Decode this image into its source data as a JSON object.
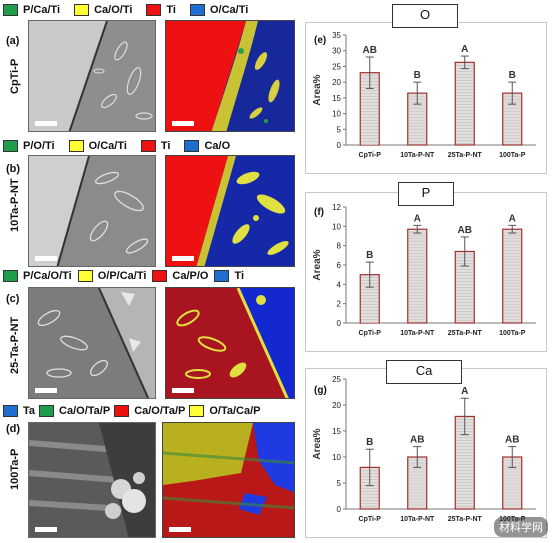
{
  "figure": {
    "rows": [
      {
        "letter": "(a)",
        "sample": "CpTi-P",
        "legend": [
          {
            "label": "P/Ca/Ti",
            "color": "#1e9e4a"
          },
          {
            "label": "Ca/O/Ti",
            "color": "#ffff33"
          },
          {
            "label": "Ti",
            "color": "#ee1111"
          },
          {
            "label": "O/Ca/Ti",
            "color": "#1f6fd0"
          }
        ]
      },
      {
        "letter": "(b)",
        "sample": "10Ta-P-NT",
        "legend": [
          {
            "label": "P/O/Ti",
            "color": "#1e9e4a"
          },
          {
            "label": "O/Ca/Ti",
            "color": "#ffff33"
          },
          {
            "label": "Ti",
            "color": "#ee1111"
          },
          {
            "label": "Ca/O",
            "color": "#1f6fd0"
          }
        ]
      },
      {
        "letter": "(c)",
        "sample": "25-Ta-P-NT",
        "legend": [
          {
            "label": "P/Ca/O/Ti",
            "color": "#1e9e4a"
          },
          {
            "label": "O/P/Ca/Ti",
            "color": "#ffff33"
          },
          {
            "label": "Ca/P/O",
            "color": "#ee1111"
          },
          {
            "label": "Ti",
            "color": "#1f6fd0"
          }
        ]
      },
      {
        "letter": "(d)",
        "sample": "100Ta-P",
        "legend": [
          {
            "label": "Ta",
            "color": "#1f6fd0"
          },
          {
            "label": "Ca/O/Ta/P",
            "color": "#1e9e4a"
          },
          {
            "label": "Ca/O/Ta/P",
            "color": "#ee1111"
          },
          {
            "label": "O/Ta/Ca/P",
            "color": "#ffff33"
          }
        ]
      }
    ],
    "watermark": "材料学网"
  },
  "chart_data": [
    {
      "type": "bar",
      "panel": "(e)",
      "title": "O",
      "ylabel": "Area%",
      "categories": [
        "CpTi-P",
        "10Ta-P-NT",
        "25Ta-P-NT",
        "100Ta-P"
      ],
      "values": [
        23,
        16.5,
        26.3,
        16.5
      ],
      "errors": [
        5,
        3.5,
        2,
        3.5
      ],
      "letters": [
        "AB",
        "B",
        "A",
        "B"
      ],
      "ylim": [
        0,
        35
      ],
      "yticks": [
        0,
        5,
        10,
        15,
        20,
        25,
        30,
        35
      ]
    },
    {
      "type": "bar",
      "panel": "(f)",
      "title": "P",
      "ylabel": "Area%",
      "categories": [
        "CpTi-P",
        "10Ta-P-NT",
        "25Ta-P-NT",
        "100Ta-P"
      ],
      "values": [
        5,
        9.7,
        7.4,
        9.7
      ],
      "errors": [
        1.3,
        0.4,
        1.5,
        0.4
      ],
      "letters": [
        "B",
        "A",
        "AB",
        "A"
      ],
      "ylim": [
        0,
        12
      ],
      "yticks": [
        0,
        2,
        4,
        6,
        8,
        10,
        12
      ]
    },
    {
      "type": "bar",
      "panel": "(g)",
      "title": "Ca",
      "ylabel": "Area%",
      "categories": [
        "CpTi-P",
        "10Ta-P-NT",
        "25Ta-P-NT",
        "100Ta-P"
      ],
      "values": [
        8,
        10,
        17.8,
        10
      ],
      "errors": [
        3.5,
        2,
        3.5,
        2
      ],
      "letters": [
        "B",
        "AB",
        "A",
        "AB"
      ],
      "ylim": [
        0,
        25
      ],
      "yticks": [
        0,
        5,
        10,
        15,
        20,
        25
      ]
    }
  ]
}
